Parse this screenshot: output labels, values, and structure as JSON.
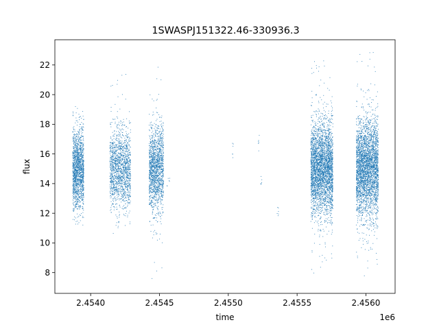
{
  "chart_data": {
    "type": "scatter",
    "title": "1SWASPJ151322.46-330936.3",
    "xlabel": "time",
    "ylabel": "flux",
    "x_offset_label": "1e6",
    "xlim": [
      2453740,
      2456212
    ],
    "ylim": [
      6.6,
      23.7
    ],
    "xticks": [
      2454000,
      2454500,
      2455000,
      2455500,
      2456000
    ],
    "xtick_labels": [
      "2.4540",
      "2.4545",
      "2.4550",
      "2.4555",
      "2.4560"
    ],
    "yticks": [
      8,
      10,
      12,
      14,
      16,
      18,
      20,
      22
    ],
    "ytick_labels": [
      "8",
      "10",
      "12",
      "14",
      "16",
      "18",
      "20",
      "22"
    ],
    "grid": false,
    "marker_color": "#1f77b4",
    "clusters": [
      {
        "x_start": 2453870,
        "x_end": 2453950,
        "y_center": 14.9,
        "y_spread": 1.3,
        "y_min": 11.1,
        "y_max": 19.5,
        "density": "high"
      },
      {
        "x_start": 2454140,
        "x_end": 2454290,
        "y_center": 15.0,
        "y_spread": 1.3,
        "y_min": 10.5,
        "y_max": 22.4,
        "density": "high"
      },
      {
        "x_start": 2454425,
        "x_end": 2454530,
        "y_center": 15.0,
        "y_spread": 1.4,
        "y_min": 7.4,
        "y_max": 23.0,
        "density": "high"
      },
      {
        "x_start": 2454555,
        "x_end": 2454575,
        "y_center": 14.1,
        "y_spread": 0.3,
        "y_min": 13.8,
        "y_max": 14.4,
        "density": "sparse"
      },
      {
        "x_start": 2455030,
        "x_end": 2455045,
        "y_center": 16.3,
        "y_spread": 0.7,
        "y_min": 15.1,
        "y_max": 17.3,
        "density": "sparse"
      },
      {
        "x_start": 2455215,
        "x_end": 2455225,
        "y_center": 16.8,
        "y_spread": 0.5,
        "y_min": 16.2,
        "y_max": 17.3,
        "density": "sparse"
      },
      {
        "x_start": 2455235,
        "x_end": 2455245,
        "y_center": 14.2,
        "y_spread": 0.2,
        "y_min": 13.9,
        "y_max": 14.5,
        "density": "sparse"
      },
      {
        "x_start": 2455355,
        "x_end": 2455365,
        "y_center": 12.0,
        "y_spread": 0.3,
        "y_min": 11.6,
        "y_max": 12.4,
        "density": "sparse"
      },
      {
        "x_start": 2455600,
        "x_end": 2455760,
        "y_center": 15.0,
        "y_spread": 1.5,
        "y_min": 7.4,
        "y_max": 22.5,
        "density": "very-high"
      },
      {
        "x_start": 2455930,
        "x_end": 2456090,
        "y_center": 15.0,
        "y_spread": 1.6,
        "y_min": 7.6,
        "y_max": 23.1,
        "density": "very-high"
      }
    ]
  }
}
